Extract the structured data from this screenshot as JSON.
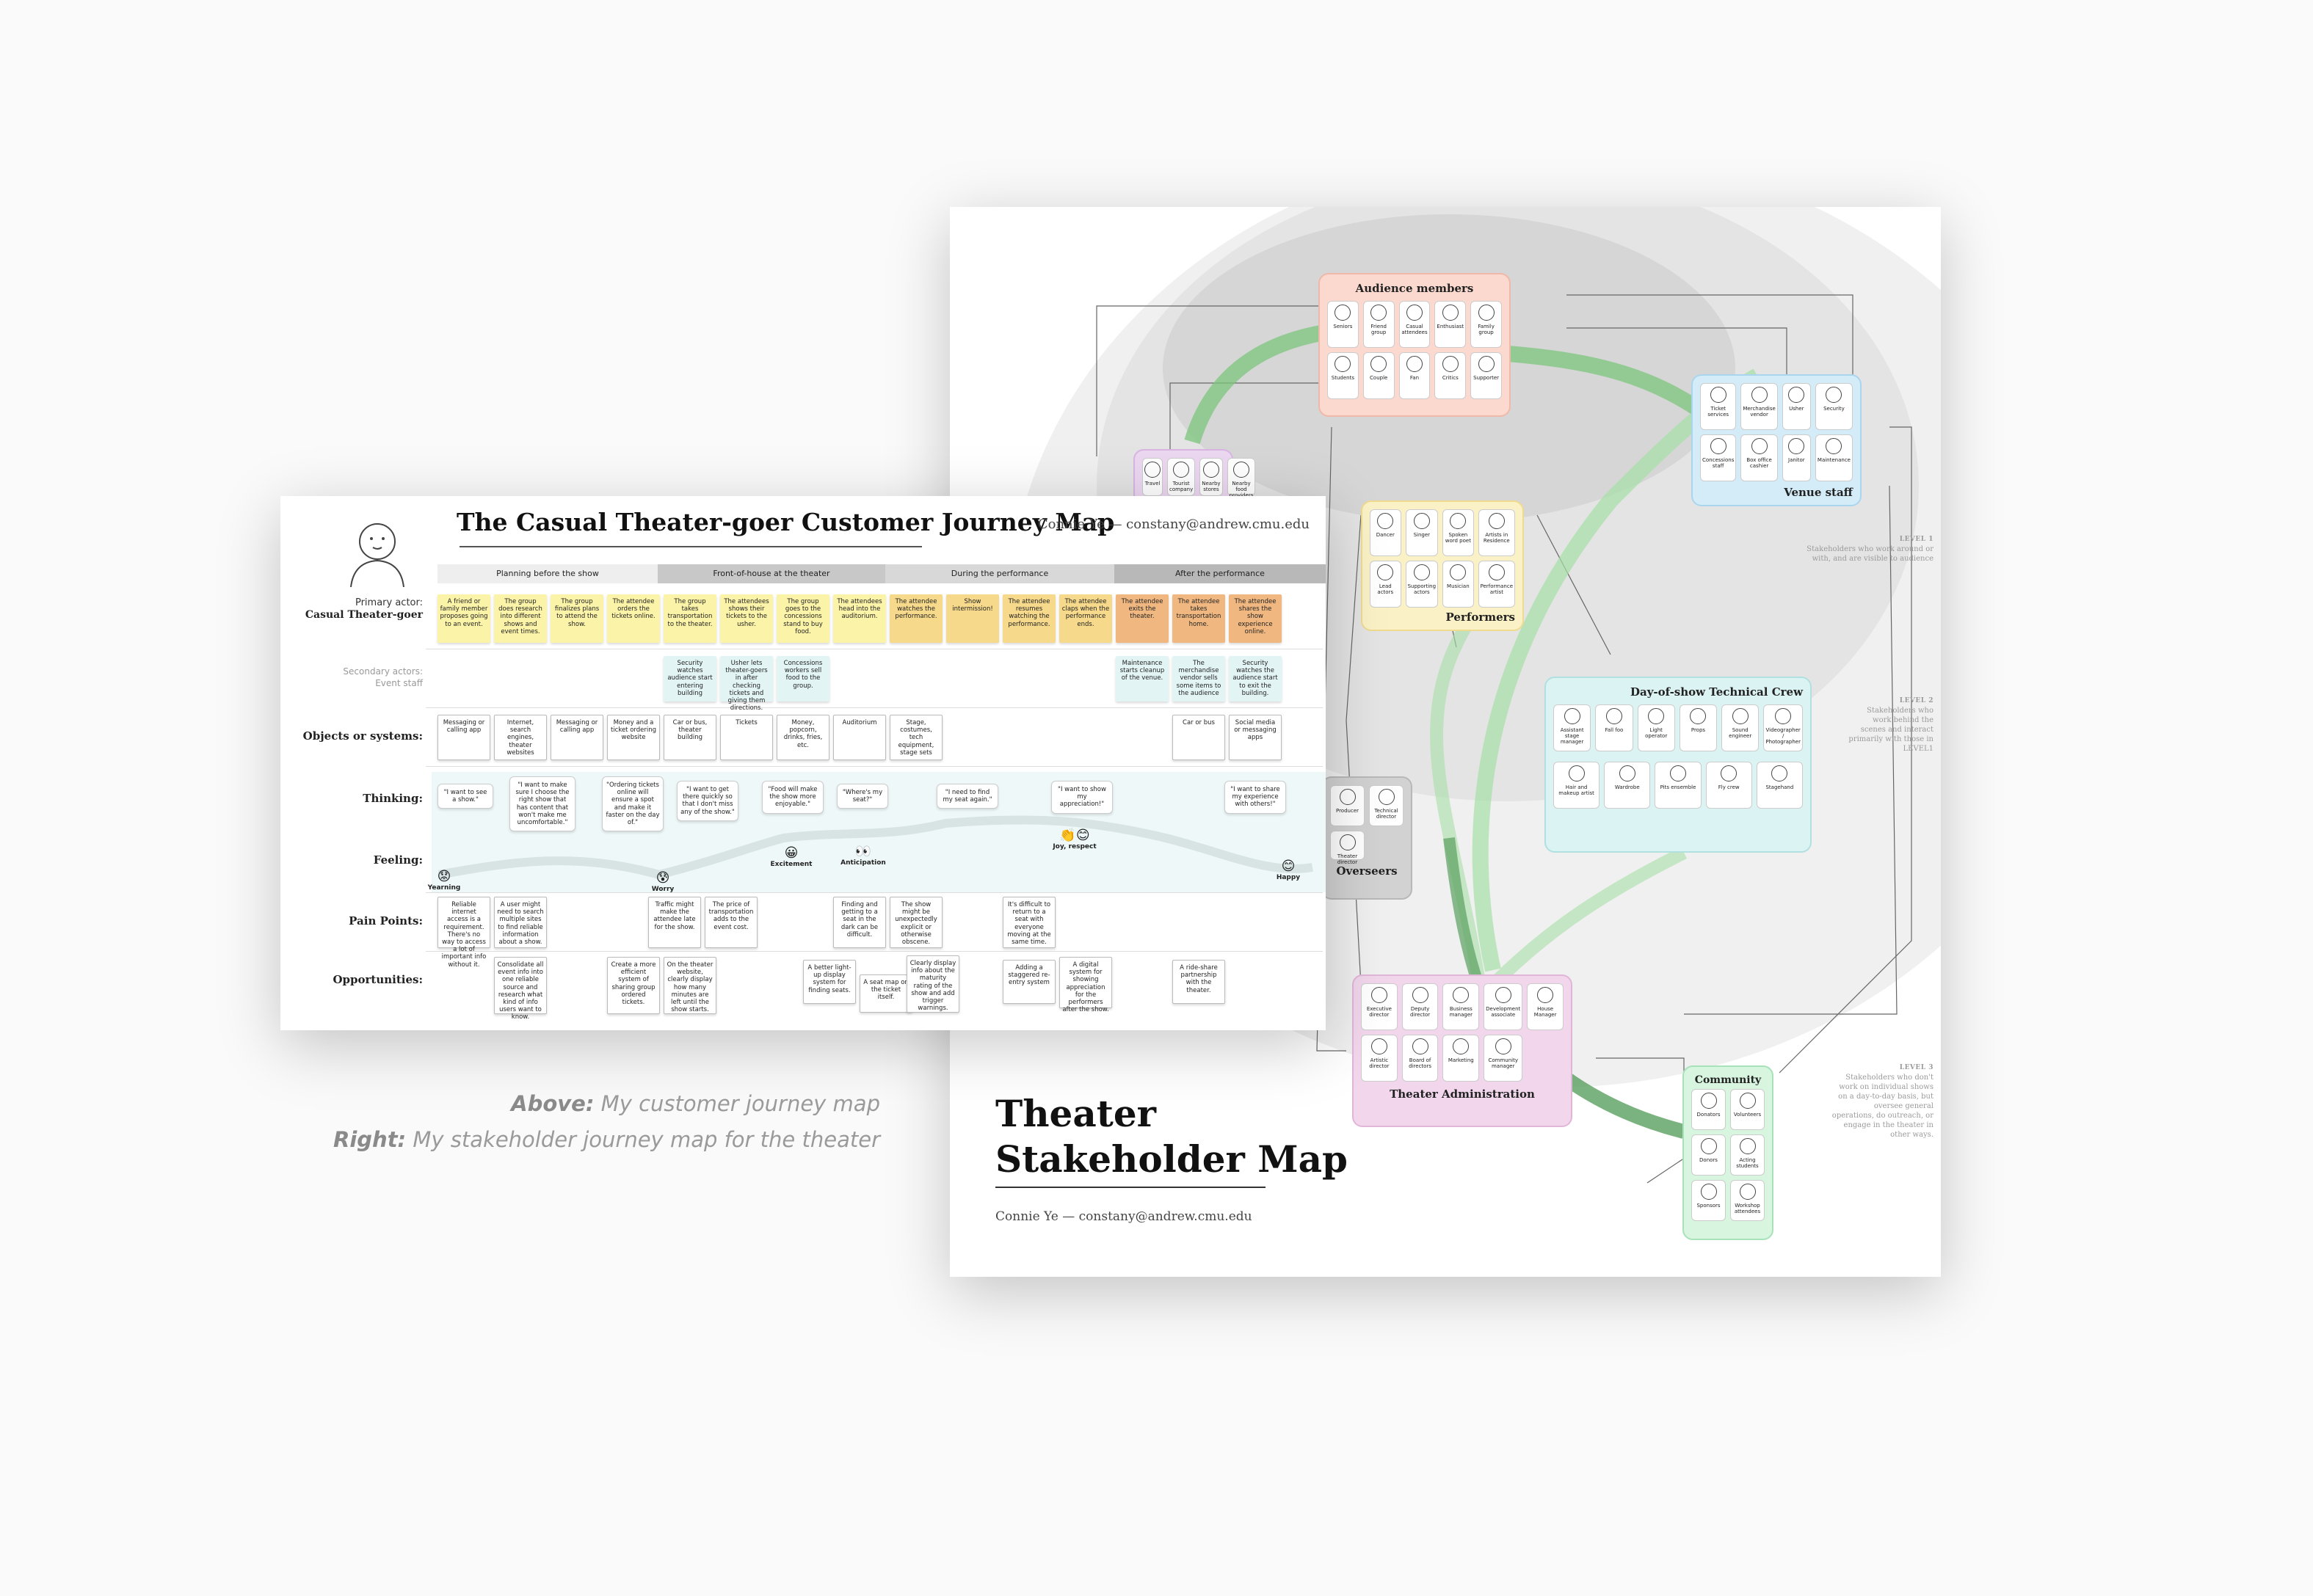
{
  "stakeholder_map": {
    "title_line1": "Theater",
    "title_line2": "Stakeholder Map",
    "author": "Connie Ye — constany@andrew.cmu.edu",
    "groups": {
      "audience": {
        "title": "Audience members",
        "items": [
          "Seniors",
          "Friend group",
          "Casual attendees",
          "Enthusiast",
          "Family group",
          "Students",
          "Couple",
          "Fan",
          "Critics",
          "Supporter"
        ]
      },
      "venue": {
        "title": "Venue staff",
        "items": [
          "Ticket services",
          "Merchandise vendor",
          "Usher",
          "Security",
          "Concessions staff",
          "Box office cashier",
          "Janitor",
          "Maintenance"
        ]
      },
      "performers": {
        "title": "Performers",
        "items": [
          "Dancer",
          "Singer",
          "Spoken word poet",
          "Artists in Residence",
          "Lead actors",
          "Supporting actors",
          "Musician",
          "Performance artist"
        ]
      },
      "crew": {
        "title": "Day-of-show Technical Crew",
        "items": [
          "Assistant stage manager",
          "Fall foo",
          "Light operator",
          "Props",
          "Sound engineer",
          "Videographer / Photographer",
          "Hair and makeup artist",
          "Wardrobe",
          "Pits ensemble",
          "Fly crew",
          "Stagehand"
        ]
      },
      "overseers": {
        "title": "Overseers",
        "items": [
          "Producer",
          "Technical director",
          "Theater director"
        ]
      },
      "admin": {
        "title": "Theater Administration",
        "items": [
          "Executive director",
          "Deputy director",
          "Business manager",
          "Development associate",
          "House Manager",
          "Artistic director",
          "Board of directors",
          "Marketing",
          "Community manager"
        ]
      },
      "community": {
        "title": "Community",
        "items": [
          "Donators",
          "Volunteers",
          "Donors",
          "Acting students",
          "Sponsors",
          "Workshop attendees"
        ]
      },
      "travel": {
        "items": [
          "Travel",
          "Tourist company",
          "Nearby stores",
          "Nearby food providers"
        ]
      }
    },
    "levels": [
      {
        "label": "LEVEL 1",
        "text": "Stakeholders who work around or with, and are visible to audience"
      },
      {
        "label": "LEVEL 2",
        "text": "Stakeholders who work behind the scenes and interact primarily with those in LEVEL1"
      },
      {
        "label": "LEVEL 3",
        "text": "Stakeholders who don't work on individual shows on a day-to-day basis, but oversee general operations, do outreach, or engage in the theater in other ways."
      }
    ]
  },
  "journey_map": {
    "title": "The Casual Theater-goer Customer Journey Map",
    "author": "Connie Ye — constany@andrew.cmu.edu",
    "primary_actor_label": "Primary actor:",
    "primary_actor": "Casual Theater-goer",
    "secondary_actor_label": "Secondary actors:",
    "secondary_actor": "Event staff",
    "phases": [
      "Planning before the show",
      "Front-of-house at the theater",
      "During the performance",
      "After the performance"
    ],
    "row_labels": {
      "objects": "Objects or systems:",
      "thinking": "Thinking:",
      "feeling": "Feeling:",
      "pain": "Pain Points:",
      "opportunities": "Opportunities:"
    },
    "steps": [
      "A friend or family member proposes going to an event.",
      "The group does research into different shows and event times.",
      "The group finalizes plans to attend the show.",
      "The attendee orders the tickets online.",
      "The group takes transportation to the theater.",
      "The attendees shows their tickets to the usher.",
      "The group goes to the concessions stand to buy food.",
      "The attendees head into the auditorium.",
      "The attendee watches the performance.",
      "Show intermission!",
      "The attendee resumes watching the performance.",
      "The attendee claps when the performance ends.",
      "The attendee exits the theater.",
      "The attendee takes transportation home.",
      "The attendee shares the show experience online."
    ],
    "secondary": [
      "Security watches audience start entering building",
      "Usher lets theater-goers in after checking tickets and giving them directions.",
      "Concessions workers sell food to the group.",
      "Maintenance starts cleanup of the venue.",
      "The merchandise vendor sells some items to the audience",
      "Security watches the audience start to exit the building."
    ],
    "objects": [
      "Messaging or calling app",
      "Internet, search engines, theater websites",
      "Messaging or calling app",
      "Money and a ticket ordering website",
      "Car or bus, theater building",
      "Tickets",
      "Money, popcorn, drinks, fries, etc.",
      "Auditorium",
      "Stage, costumes, tech equipment, stage sets",
      "Car or bus",
      "Social media or messaging apps"
    ],
    "thinking": [
      "\"I want to see a show.\"",
      "\"I want to make sure I choose the right show that has content that won't make me uncomfortable.\"",
      "\"Ordering tickets online will ensure a spot and make it faster on the day of.\"",
      "\"I want to get there quickly so that I don't miss any of the show.\"",
      "\"Food will make the show more enjoyable.\"",
      "\"Where's my seat?\"",
      "\"I need to find my seat again.\"",
      "\"I want to show my appreciation!\"",
      "\"I want to share my experience with others!\""
    ],
    "feelings": [
      "Yearning",
      "Worry",
      "Excitement",
      "Anticipation",
      "Joy, respect",
      "Happy"
    ],
    "pain_points": [
      "Reliable internet access is a requirement. There's no way to access a lot of important info without it.",
      "A user might need to search multiple sites to find reliable information about a show.",
      "Traffic might make the attendee late for the show.",
      "The price of transportation adds to the event cost.",
      "Finding and getting to a seat in the dark can be difficult.",
      "The show might be unexpectedly explicit or otherwise obscene.",
      "It's difficult to return to a seat with everyone moving at the same time."
    ],
    "opportunities": [
      "Consolidate all event info into one reliable source and research what kind of info users want to know.",
      "Create a more efficient system of sharing group ordered tickets.",
      "On the theater website, clearly display how many minutes are left until the show starts.",
      "A better light-up display system for finding seats.",
      "A seat map on the ticket itself.",
      "Clearly display info about the maturity rating of the show and add trigger warnings.",
      "Adding a staggered re-entry system",
      "A digital system for showing appreciation for the performers after the show.",
      "A ride-share partnership with the theater."
    ]
  },
  "captions": {
    "above_label": "Above:",
    "above_text": "My customer journey map",
    "right_label": "Right:",
    "right_text": "My stakeholder journey map for the theater"
  }
}
